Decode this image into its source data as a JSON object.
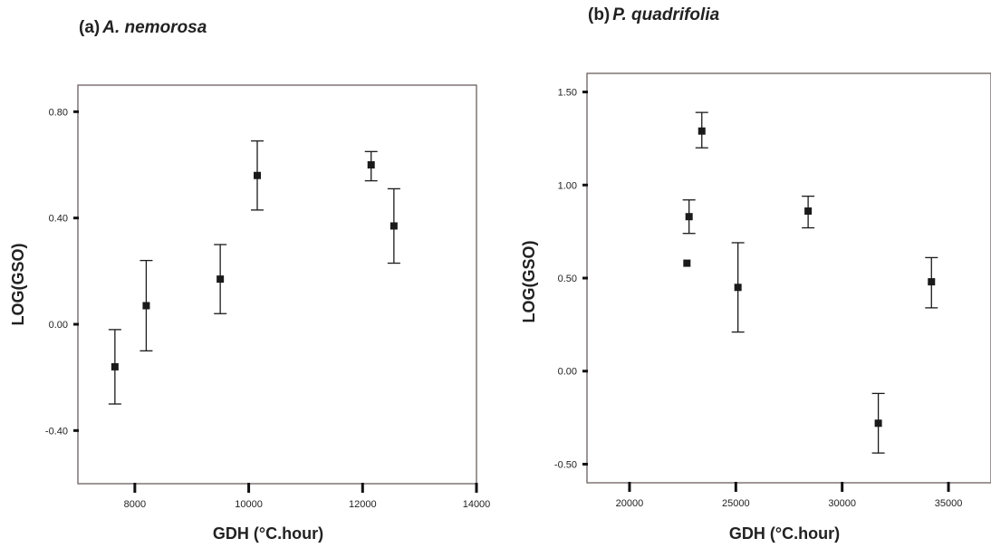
{
  "chart_data": [
    {
      "type": "scatter",
      "panel_label": "(a)",
      "title": "A. nemorosa",
      "xlabel": "GDH (°C.hour)",
      "ylabel": "LOG(GSO)",
      "xlim": [
        7000,
        14000
      ],
      "ylim": [
        -0.6,
        0.9
      ],
      "xticks": [
        8000,
        10000,
        12000,
        14000
      ],
      "xtick_labels": [
        "8000",
        "10000",
        "12000",
        "14000"
      ],
      "yticks": [
        -0.4,
        0.0,
        0.4,
        0.8
      ],
      "ytick_labels": [
        "-0.40",
        "0.00",
        "0.40",
        "0.80"
      ],
      "grid": false,
      "legend": "none",
      "marker_color": "#1a1a1a",
      "points": [
        {
          "x": 7650,
          "y": -0.16,
          "lo": -0.3,
          "hi": -0.02
        },
        {
          "x": 8200,
          "y": 0.07,
          "lo": -0.1,
          "hi": 0.24
        },
        {
          "x": 9500,
          "y": 0.17,
          "lo": 0.04,
          "hi": 0.3
        },
        {
          "x": 10150,
          "y": 0.56,
          "lo": 0.43,
          "hi": 0.69
        },
        {
          "x": 12150,
          "y": 0.6,
          "lo": 0.54,
          "hi": 0.65
        },
        {
          "x": 12550,
          "y": 0.37,
          "lo": 0.23,
          "hi": 0.51
        }
      ]
    },
    {
      "type": "scatter",
      "panel_label": "(b)",
      "title": "P. quadrifolia",
      "xlabel": "GDH (°C.hour)",
      "ylabel": "LOG(GSO)",
      "xlim": [
        18000,
        37000
      ],
      "ylim": [
        -0.6,
        1.6
      ],
      "xticks": [
        20000,
        25000,
        30000,
        35000
      ],
      "xtick_labels": [
        "20000",
        "25000",
        "30000",
        "35000"
      ],
      "yticks": [
        -0.5,
        0.0,
        0.5,
        1.0,
        1.5
      ],
      "ytick_labels": [
        "-0.50",
        "0.00",
        "0.50",
        "1.00",
        "1.50"
      ],
      "grid": false,
      "legend": "none",
      "marker_color": "#1a1a1a",
      "points": [
        {
          "x": 22700,
          "y": 0.58
        },
        {
          "x": 22800,
          "y": 0.83,
          "lo": 0.74,
          "hi": 0.92
        },
        {
          "x": 23400,
          "y": 1.29,
          "lo": 1.2,
          "hi": 1.39
        },
        {
          "x": 25100,
          "y": 0.45,
          "lo": 0.21,
          "hi": 0.69
        },
        {
          "x": 28400,
          "y": 0.86,
          "lo": 0.77,
          "hi": 0.94
        },
        {
          "x": 31700,
          "y": -0.28,
          "lo": -0.44,
          "hi": -0.12
        },
        {
          "x": 34200,
          "y": 0.48,
          "lo": 0.34,
          "hi": 0.61
        }
      ]
    }
  ]
}
